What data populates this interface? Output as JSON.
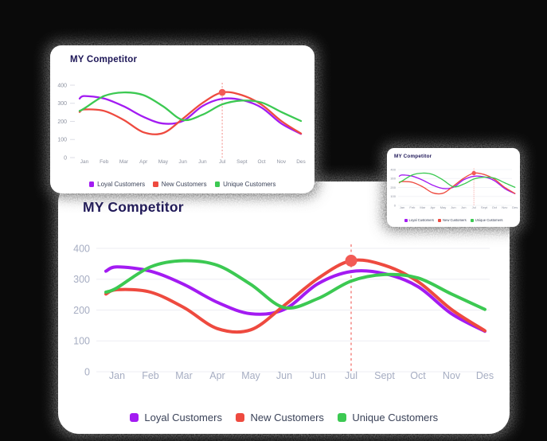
{
  "background_color": "#0a0a0a",
  "cards": {
    "large": {
      "title": "MY Competitor"
    },
    "medium": {
      "title": "MY Competitor"
    },
    "small": {
      "title": "MY Competitor"
    }
  },
  "chart_data": {
    "type": "line",
    "title": "MY Competitor",
    "categories": [
      "Jan",
      "Feb",
      "Mar",
      "Apr",
      "May",
      "Jun",
      "Jun",
      "Jul",
      "Sept",
      "Oct",
      "Nov",
      "Des"
    ],
    "series": [
      {
        "name": "Loyal Customers",
        "color": "#a31bf2",
        "values": [
          340,
          326,
          283,
          225,
          188,
          202,
          285,
          325,
          318,
          276,
          188,
          131
        ]
      },
      {
        "name": "New Customers",
        "color": "#ee4a3f",
        "values": [
          266,
          258,
          208,
          140,
          136,
          215,
          302,
          360,
          345,
          292,
          202,
          133
        ]
      },
      {
        "name": "Unique Customers",
        "color": "#3cc952",
        "values": [
          272,
          340,
          360,
          345,
          283,
          208,
          237,
          294,
          315,
          304,
          252,
          202
        ]
      }
    ],
    "ylim": [
      0,
      400
    ],
    "yticks": [
      0,
      100,
      200,
      300,
      400
    ],
    "highlight": {
      "series": "New Customers",
      "category": "Jul",
      "category_index": 7,
      "value": 360,
      "dot_color": "#f25b55",
      "line_color": "#f25b55"
    },
    "axis_label_color_large": "#a6adc2",
    "axis_label_color_compact": "#8d92a0",
    "grid": true,
    "legend_position": "bottom"
  }
}
